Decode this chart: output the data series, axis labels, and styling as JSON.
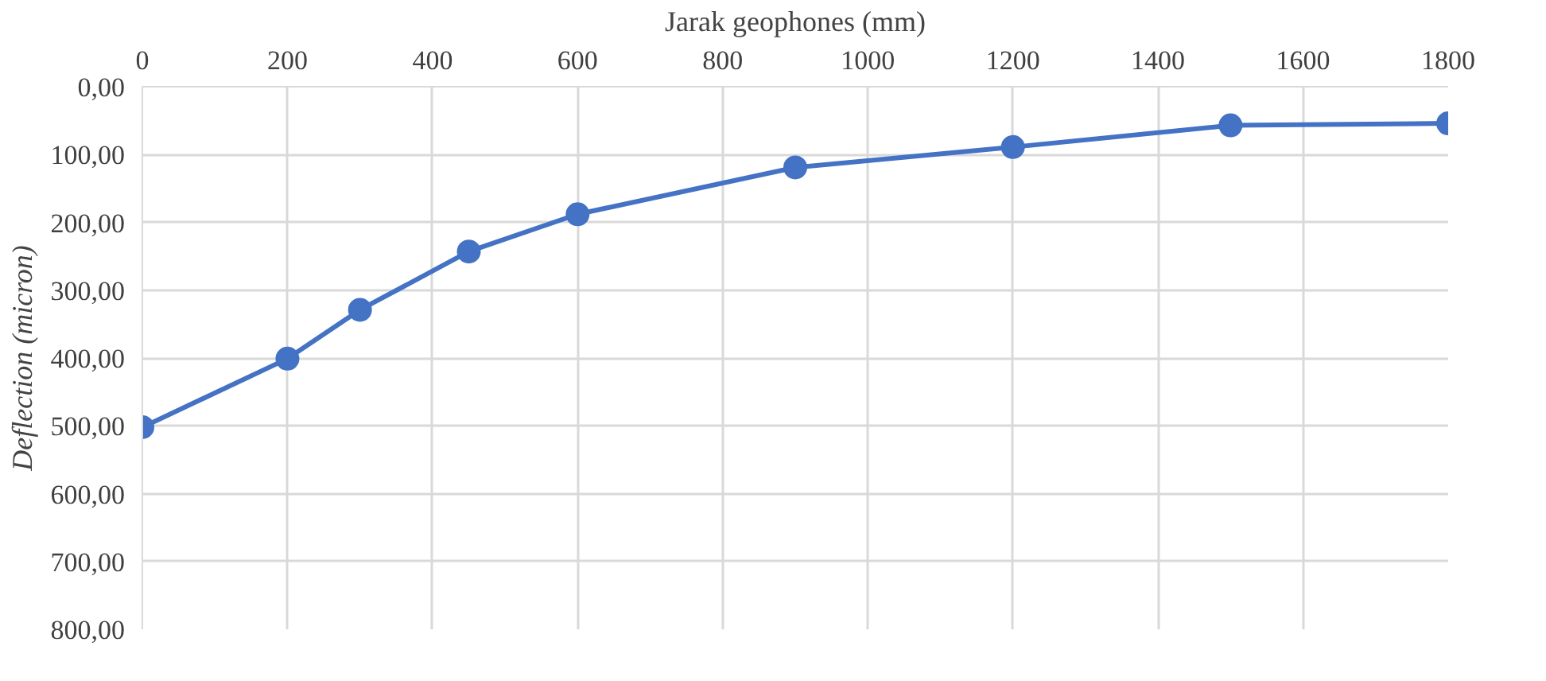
{
  "chart_data": {
    "type": "line",
    "xlabel": "Jarak geophones (mm)",
    "ylabel": "Deflection (micron)",
    "x": [
      0,
      200,
      300,
      450,
      600,
      900,
      1200,
      1500,
      1800
    ],
    "series": [
      {
        "color": "#4472c4",
        "values": [
          502,
          401,
          329,
          243,
          188,
          119,
          89,
          57,
          54
        ]
      }
    ],
    "xlim": [
      0,
      1800
    ],
    "xticks": [
      0,
      200,
      400,
      600,
      800,
      1000,
      1200,
      1400,
      1600,
      1800
    ],
    "ylim": [
      800,
      0
    ],
    "yticks": [
      {
        "value": 0,
        "label": "0,00"
      },
      {
        "value": 100,
        "label": "100,00"
      },
      {
        "value": 200,
        "label": "200,00"
      },
      {
        "value": 300,
        "label": "300,00"
      },
      {
        "value": 400,
        "label": "400,00"
      },
      {
        "value": 500,
        "label": "500,00"
      },
      {
        "value": 600,
        "label": "600,00"
      },
      {
        "value": 700,
        "label": "700,00"
      },
      {
        "value": 800,
        "label": "800,00"
      }
    ],
    "grid": true,
    "marker": "circle",
    "line_style": "solid"
  }
}
